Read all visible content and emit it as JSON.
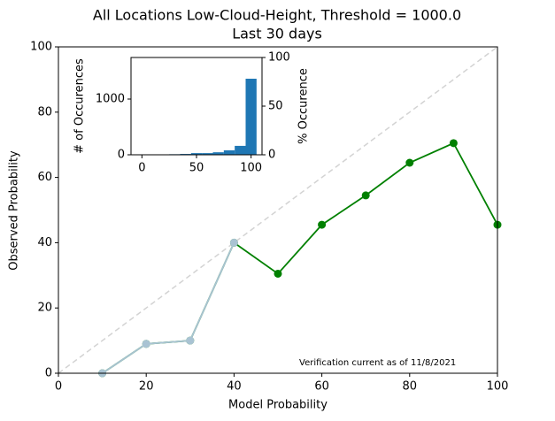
{
  "chart_data": [
    {
      "type": "line",
      "title": "All Locations Low-Cloud-Height, Threshold = 1000.0",
      "subtitle": "Last 30 days",
      "xlabel": "Model Probability",
      "ylabel": "Observed Probability",
      "annotation": "Verification current as of 11/8/2021",
      "x": [
        10,
        20,
        30,
        40,
        50,
        60,
        70,
        80,
        90,
        100
      ],
      "series": [
        {
          "color": "#008000",
          "values": [
            0,
            9,
            10,
            40,
            30.5,
            45.5,
            54.5,
            64.5,
            70.5,
            45.5
          ]
        },
        {
          "color": "#a9c3d3",
          "values": [
            0,
            9,
            10,
            40,
            null,
            null,
            null,
            null,
            null,
            null
          ]
        }
      ],
      "xlim": [
        0,
        100
      ],
      "xticks": [
        0,
        20,
        40,
        60,
        80,
        100
      ],
      "ylim": [
        0,
        100
      ],
      "yticks": [
        0,
        20,
        40,
        60,
        80,
        100
      ],
      "diagonal_color": "#d3d3d3"
    },
    {
      "type": "histogram",
      "ylabel": "# of Occurences",
      "y2label": "% Occurence",
      "bins": [
        5,
        15,
        25,
        35,
        45,
        55,
        65,
        75,
        85,
        95,
        105
      ],
      "values": [
        5,
        5,
        10,
        15,
        30,
        30,
        45,
        80,
        160,
        1365
      ],
      "color": "#1f77b4",
      "xlim": [
        -10,
        110
      ],
      "xticks": [
        0,
        50,
        100
      ],
      "ylim": [
        0,
        1746
      ],
      "yticks": [
        0,
        1000
      ],
      "y2lim": [
        0,
        100
      ],
      "y2ticks": [
        0,
        50,
        100
      ]
    }
  ]
}
